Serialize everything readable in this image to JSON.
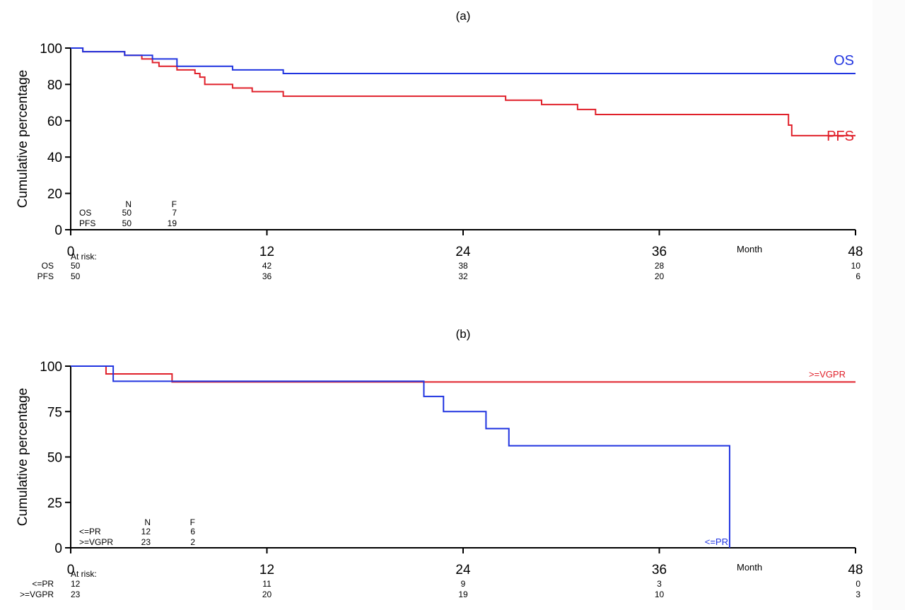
{
  "colors": {
    "blue": "#2034e0",
    "red": "#e0202a",
    "axis": "#000000"
  },
  "chart_data": [
    {
      "type": "line",
      "subtype": "kaplan-meier step",
      "title": "(a)",
      "ylabel": "Cumulative percentage",
      "xlabel": "Month",
      "xlim": [
        0,
        48
      ],
      "ylim": [
        0,
        100
      ],
      "xticks": [
        0,
        12,
        24,
        36,
        48
      ],
      "yticks": [
        0,
        20,
        40,
        60,
        80,
        100
      ],
      "grid": false,
      "series": [
        {
          "name": "OS",
          "color": "#2034e0",
          "steps": [
            [
              0,
              100
            ],
            [
              0.74,
              98
            ],
            [
              3.3,
              96
            ],
            [
              5.0,
              94
            ],
            [
              6.5,
              90
            ],
            [
              9.9,
              88
            ],
            [
              13.0,
              86
            ],
            [
              48,
              86
            ]
          ]
        },
        {
          "name": "PFS",
          "color": "#e0202a",
          "steps": [
            [
              0,
              100
            ],
            [
              0.74,
              98
            ],
            [
              3.3,
              96
            ],
            [
              4.35,
              94
            ],
            [
              5.0,
              92
            ],
            [
              5.4,
              90
            ],
            [
              6.5,
              88
            ],
            [
              7.6,
              86
            ],
            [
              7.9,
              84
            ],
            [
              8.2,
              80
            ],
            [
              9.9,
              78
            ],
            [
              11.1,
              76
            ],
            [
              13.0,
              73.5
            ],
            [
              26.6,
              71.3
            ],
            [
              28.8,
              68.9
            ],
            [
              31.0,
              66.2
            ],
            [
              32.1,
              63.4
            ],
            [
              43.9,
              57.6
            ],
            [
              44.1,
              51.8
            ],
            [
              48,
              51.8
            ]
          ]
        }
      ],
      "summary_table": {
        "headers": [
          "",
          "N",
          "F"
        ],
        "rows": [
          [
            "OS",
            "50",
            "7"
          ],
          [
            "PFS",
            "50",
            "19"
          ]
        ]
      },
      "at_risk": {
        "label": "At risk:",
        "rows": [
          {
            "name": "OS",
            "values": [
              "50",
              "42",
              "38",
              "28",
              "10"
            ]
          },
          {
            "name": "PFS",
            "values": [
              "50",
              "36",
              "32",
              "20",
              "6"
            ]
          }
        ]
      }
    },
    {
      "type": "line",
      "subtype": "kaplan-meier step",
      "title": "(b)",
      "ylabel": "Cumulative percentage",
      "xlabel": "Month",
      "xlim": [
        0,
        48
      ],
      "ylim": [
        0,
        100
      ],
      "xticks": [
        0,
        12,
        24,
        36,
        48
      ],
      "yticks": [
        0,
        25,
        50,
        75,
        100
      ],
      "grid": false,
      "series": [
        {
          "name": "<=PR",
          "color": "#2034e0",
          "steps": [
            [
              0,
              100
            ],
            [
              2.6,
              91.7
            ],
            [
              21.6,
              83.3
            ],
            [
              22.8,
              75
            ],
            [
              25.4,
              65.6
            ],
            [
              26.8,
              56.2
            ],
            [
              40.3,
              0
            ]
          ]
        },
        {
          "name": ">=VGPR",
          "color": "#e0202a",
          "steps": [
            [
              0,
              100
            ],
            [
              2.16,
              95.7
            ],
            [
              6.2,
              91.3
            ],
            [
              48,
              91.3
            ]
          ]
        }
      ],
      "summary_table": {
        "headers": [
          "",
          "N",
          "F"
        ],
        "rows": [
          [
            "<=PR",
            "12",
            "6"
          ],
          [
            ">=VGPR",
            "23",
            "2"
          ]
        ]
      },
      "at_risk": {
        "label": "At risk:",
        "rows": [
          {
            "name": "<=PR",
            "values": [
              "12",
              "11",
              "9",
              "3",
              "0"
            ]
          },
          {
            "name": ">=VGPR",
            "values": [
              "23",
              "20",
              "19",
              "10",
              "3"
            ]
          }
        ]
      }
    }
  ]
}
